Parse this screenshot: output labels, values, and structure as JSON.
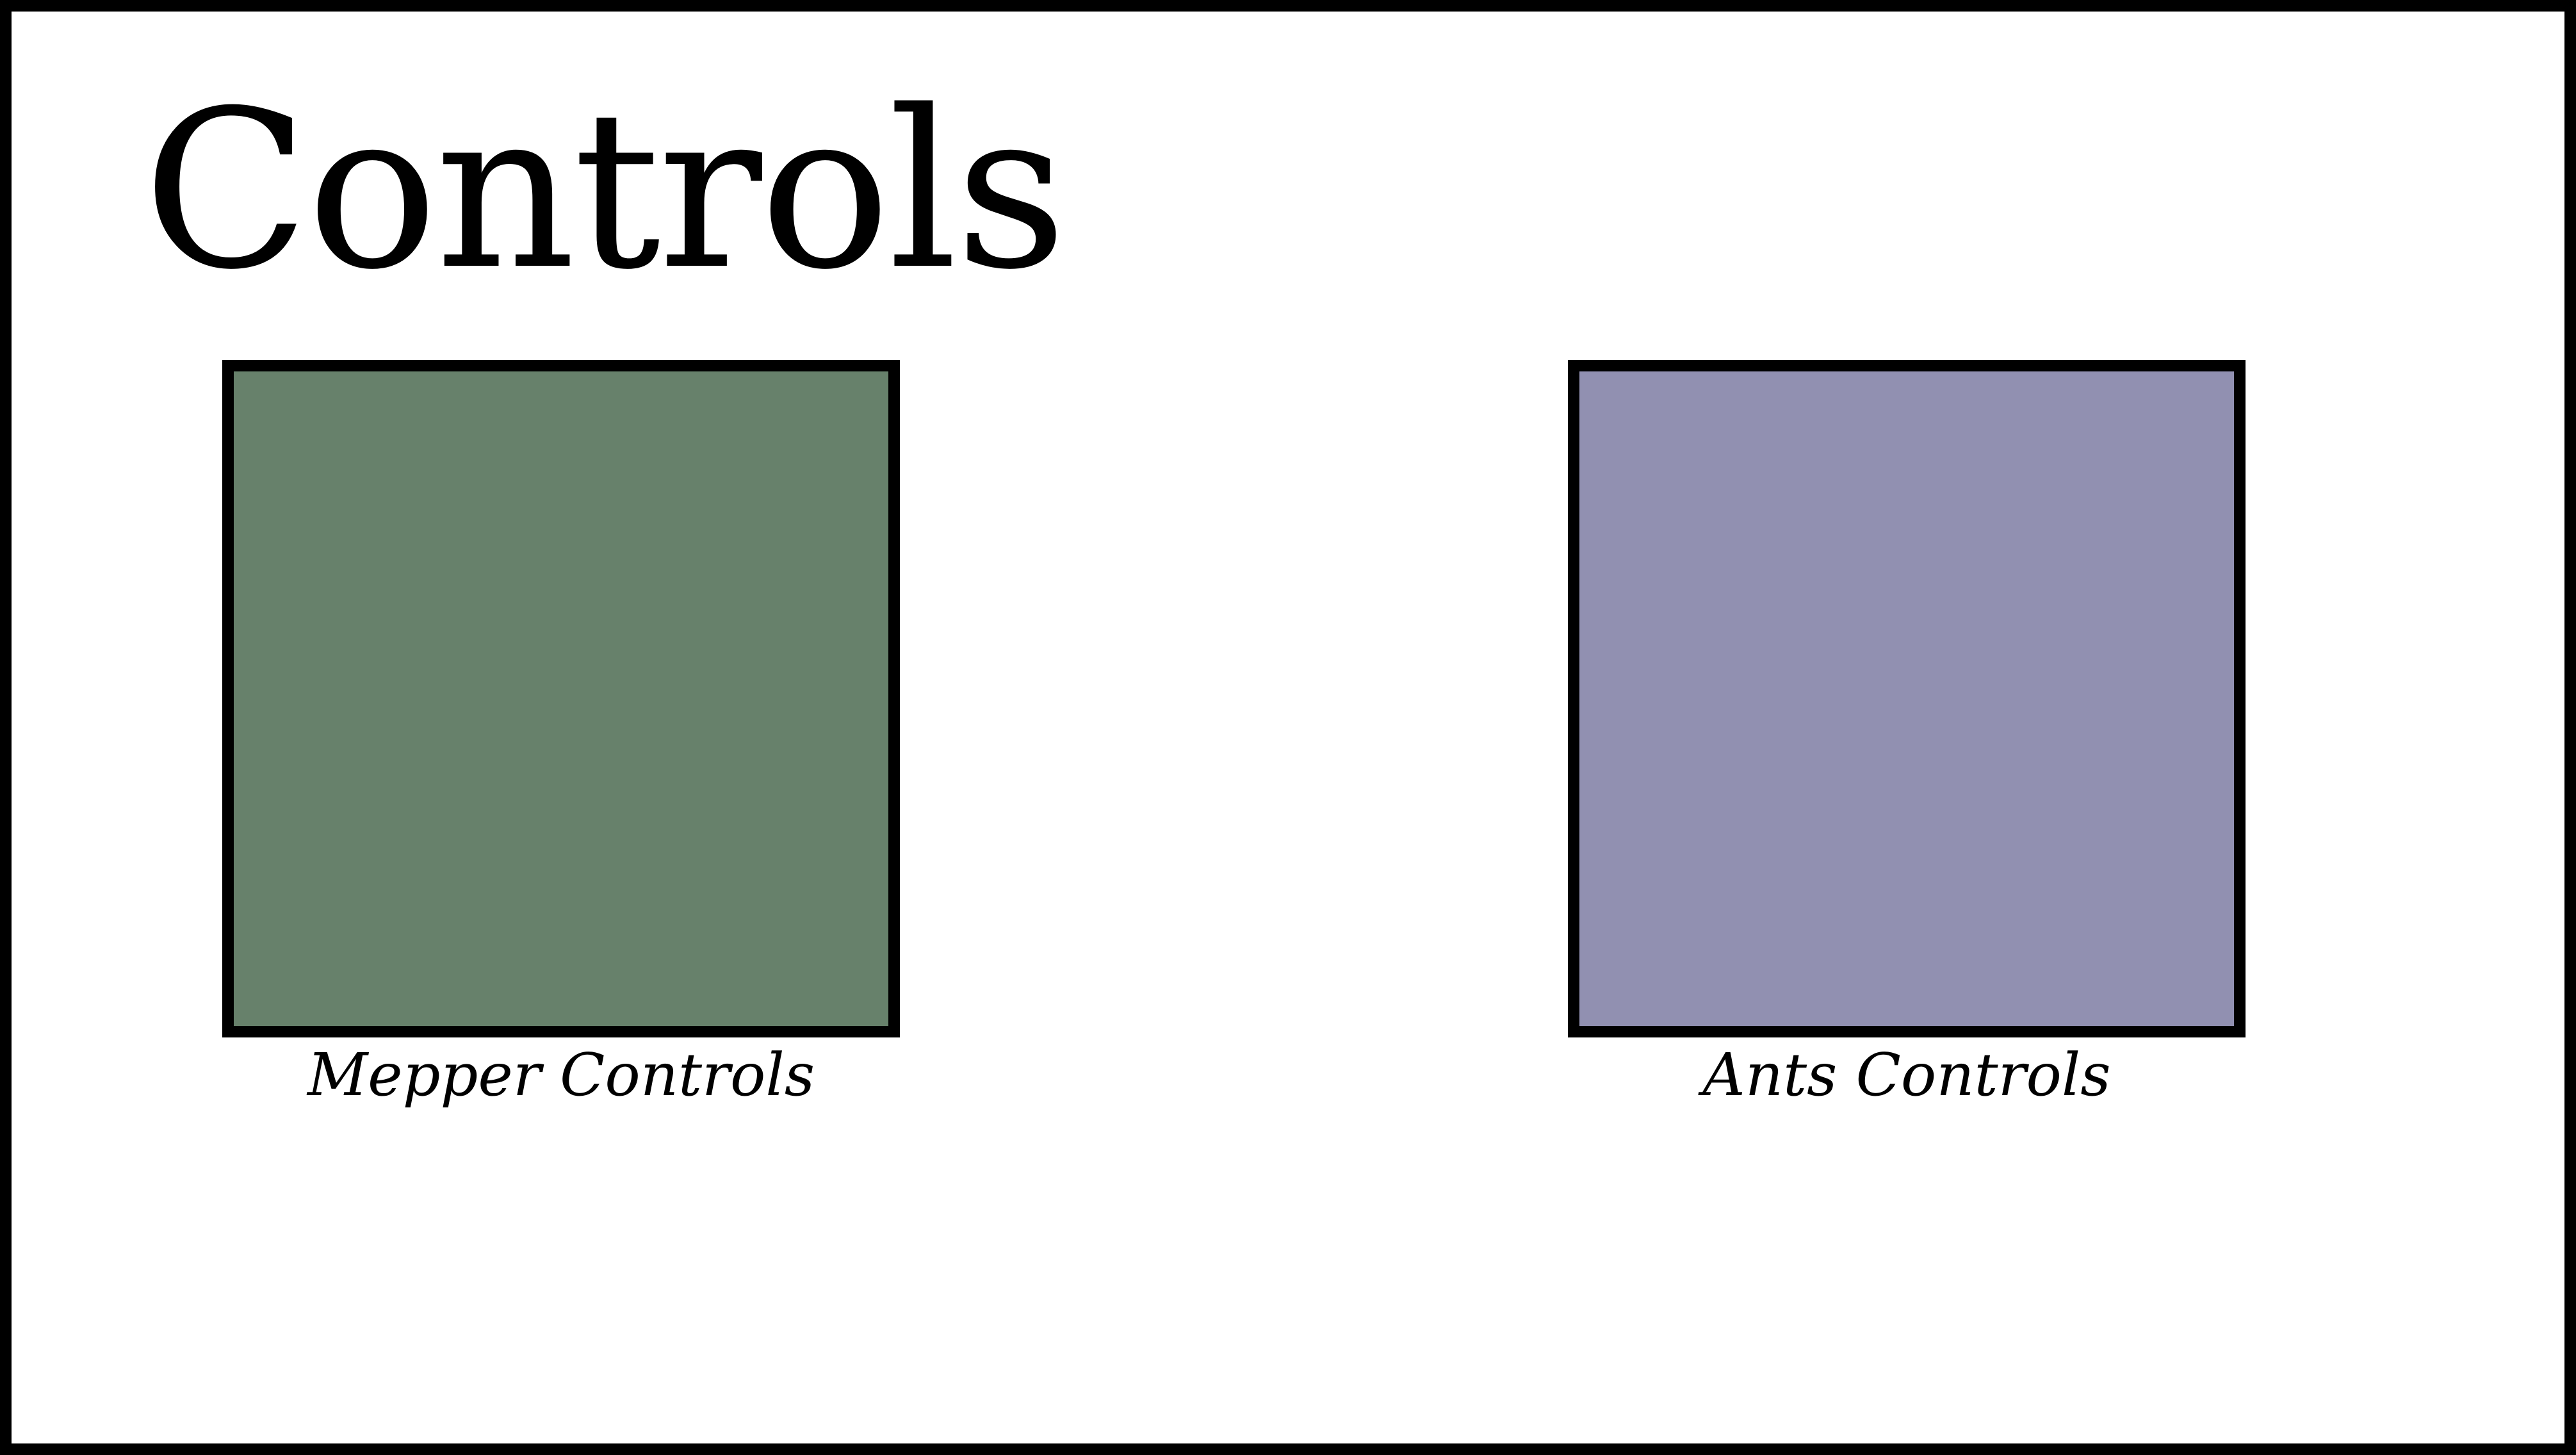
{
  "page": {
    "title": "Controls"
  },
  "panels": [
    {
      "label": "Mepper Controls",
      "color": "#67816b"
    },
    {
      "label": "Ants Controls",
      "color": "#9190b1"
    }
  ],
  "colors": {
    "border": "#000000",
    "background": "#ffffff"
  }
}
